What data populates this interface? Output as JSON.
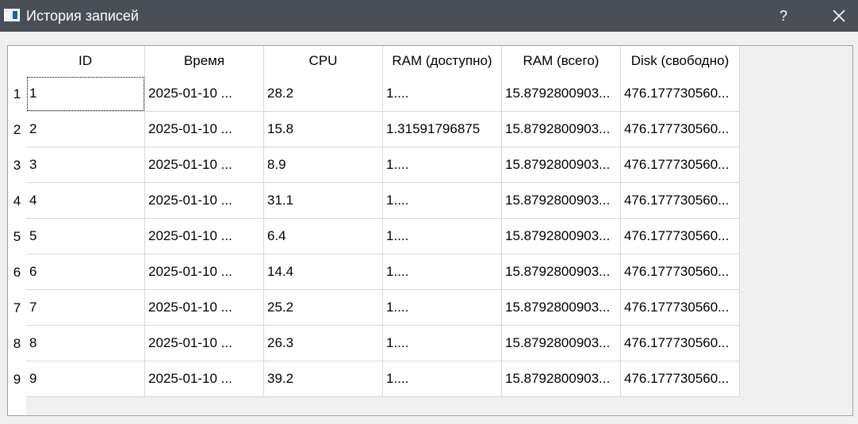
{
  "window": {
    "title": "История записей",
    "help_label": "?"
  },
  "table": {
    "columns": [
      "ID",
      "Время",
      "CPU",
      "RAM (доступно)",
      "RAM (всего)",
      "Disk (свободно)"
    ],
    "row_numbers": [
      "1",
      "2",
      "3",
      "4",
      "5",
      "6",
      "7",
      "8",
      "9"
    ],
    "rows": [
      [
        "1",
        "2025-01-10 ...",
        "28.2",
        "1....",
        "15.8792800903...",
        "476.177730560..."
      ],
      [
        "2",
        "2025-01-10 ...",
        "15.8",
        "1.31591796875",
        "15.8792800903...",
        "476.177730560..."
      ],
      [
        "3",
        "2025-01-10 ...",
        "8.9",
        "1....",
        "15.8792800903...",
        "476.177730560..."
      ],
      [
        "4",
        "2025-01-10 ...",
        "31.1",
        "1....",
        "15.8792800903...",
        "476.177730560..."
      ],
      [
        "5",
        "2025-01-10 ...",
        "6.4",
        "1....",
        "15.8792800903...",
        "476.177730560..."
      ],
      [
        "6",
        "2025-01-10 ...",
        "14.4",
        "1....",
        "15.8792800903...",
        "476.177730560..."
      ],
      [
        "7",
        "2025-01-10 ...",
        "25.2",
        "1....",
        "15.8792800903...",
        "476.177730560..."
      ],
      [
        "8",
        "2025-01-10 ...",
        "26.3",
        "1....",
        "15.8792800903...",
        "476.177730560..."
      ],
      [
        "9",
        "2025-01-10 ...",
        "39.2",
        "1....",
        "15.8792800903...",
        "476.177730560..."
      ]
    ]
  }
}
